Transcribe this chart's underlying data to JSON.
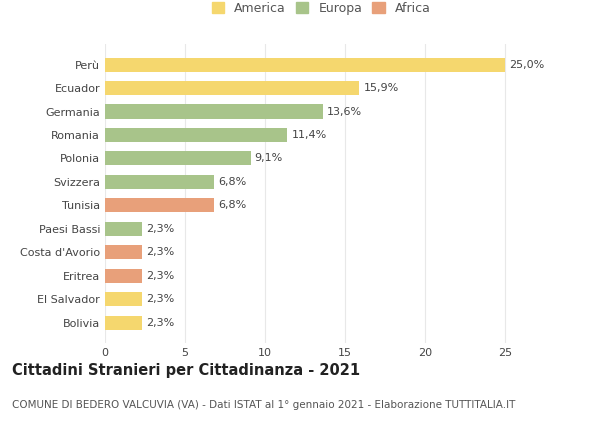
{
  "categories": [
    "Bolivia",
    "El Salvador",
    "Eritrea",
    "Costa d'Avorio",
    "Paesi Bassi",
    "Tunisia",
    "Svizzera",
    "Polonia",
    "Romania",
    "Germania",
    "Ecuador",
    "Perù"
  ],
  "values": [
    2.3,
    2.3,
    2.3,
    2.3,
    2.3,
    6.8,
    6.8,
    9.1,
    11.4,
    13.6,
    15.9,
    25.0
  ],
  "colors": [
    "#f5d76e",
    "#f5d76e",
    "#e8a07a",
    "#e8a07a",
    "#a8c48a",
    "#e8a07a",
    "#a8c48a",
    "#a8c48a",
    "#a8c48a",
    "#a8c48a",
    "#f5d76e",
    "#f5d76e"
  ],
  "labels": [
    "2,3%",
    "2,3%",
    "2,3%",
    "2,3%",
    "2,3%",
    "6,8%",
    "6,8%",
    "9,1%",
    "11,4%",
    "13,6%",
    "15,9%",
    "25,0%"
  ],
  "legend": [
    {
      "label": "America",
      "color": "#f5d76e"
    },
    {
      "label": "Europa",
      "color": "#a8c48a"
    },
    {
      "label": "Africa",
      "color": "#e8a07a"
    }
  ],
  "xlim": [
    0,
    27
  ],
  "xticks": [
    0,
    5,
    10,
    15,
    20,
    25
  ],
  "title": "Cittadini Stranieri per Cittadinanza - 2021",
  "subtitle": "COMUNE DI BEDERO VALCUVIA (VA) - Dati ISTAT al 1° gennaio 2021 - Elaborazione TUTTITALIA.IT",
  "background_color": "#ffffff",
  "grid_color": "#e8e8e8",
  "bar_height": 0.6,
  "label_fontsize": 8,
  "title_fontsize": 10.5,
  "subtitle_fontsize": 7.5,
  "tick_fontsize": 8,
  "legend_fontsize": 9
}
